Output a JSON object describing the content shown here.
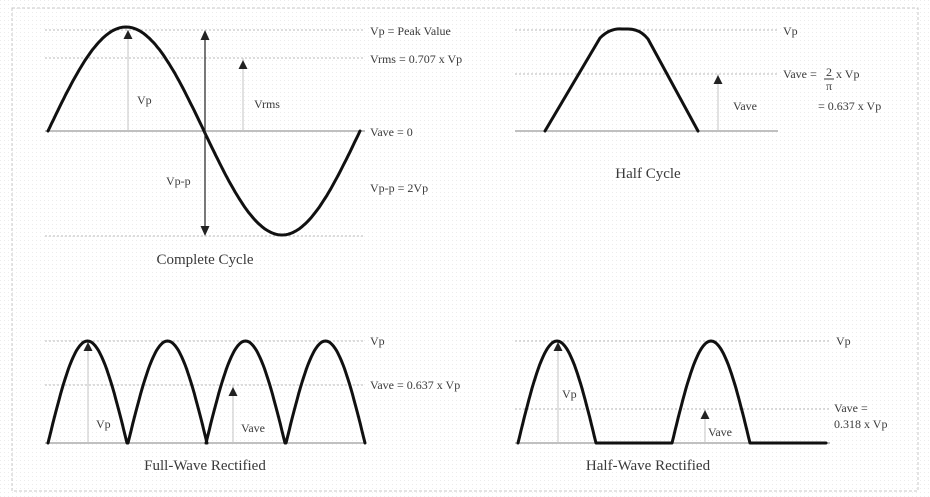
{
  "panels": {
    "complete": {
      "caption": "Complete Cycle",
      "vp_label": "Vp = Peak Value",
      "vrms_label": "Vrms = 0.707 x Vp",
      "vave_label": "Vave = 0",
      "vpp_label": "Vp-p = 2Vp",
      "inner_vp": "Vp",
      "inner_vrms": "Vrms",
      "inner_vpp": "Vp-p"
    },
    "half": {
      "caption": "Half Cycle",
      "vp_label": "Vp",
      "vave_prefix": "Vave = ",
      "frac_num": "2",
      "frac_den": "π",
      "vave_suffix": " x Vp",
      "vave_line2": "= 0.637 x Vp",
      "inner_vave": "Vave"
    },
    "full_wave": {
      "caption": "Full-Wave Rectified",
      "vp_label": "Vp",
      "vave_label": "Vave = 0.637 x Vp",
      "inner_vp": "Vp",
      "inner_vave": "Vave"
    },
    "half_wave": {
      "caption": "Half-Wave Rectified",
      "vp_label": "Vp",
      "vave_line1": "Vave =",
      "vave_line2": "0.318 x Vp",
      "inner_vp": "Vp",
      "inner_vave": "Vave"
    }
  }
}
